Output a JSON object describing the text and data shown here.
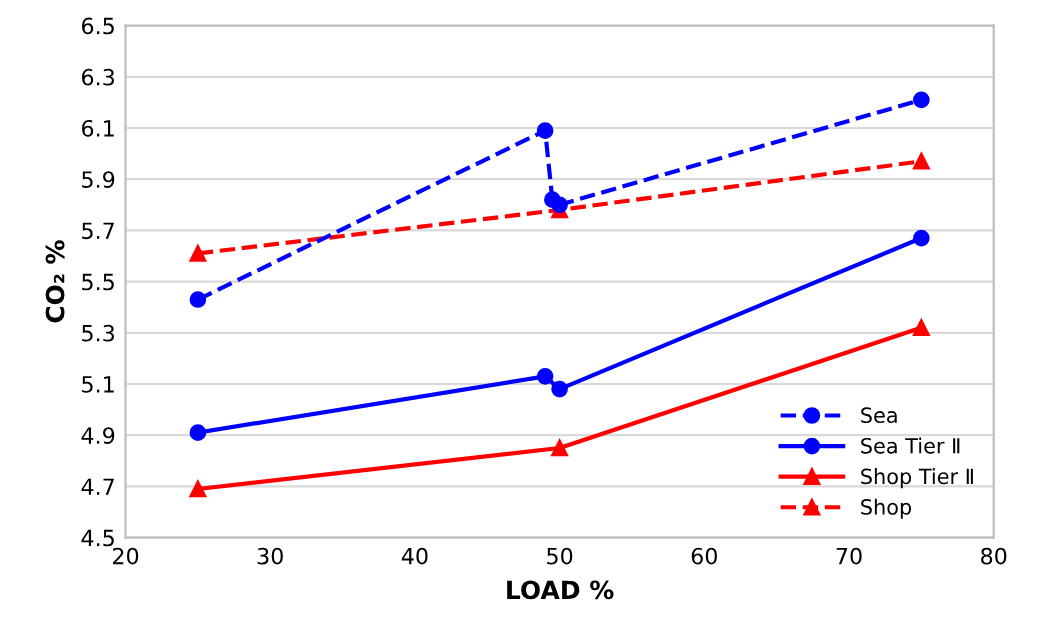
{
  "chart_data": {
    "type": "line",
    "xlabel": "LOAD %",
    "ylabel": "CO₂ %",
    "xlim": [
      20,
      80
    ],
    "xticks": [
      20,
      30,
      40,
      50,
      60,
      70,
      80
    ],
    "ylim": [
      4.5,
      6.5
    ],
    "yticks": [
      4.5,
      4.7,
      4.9,
      5.1,
      5.3,
      5.5,
      5.7,
      5.9,
      6.1,
      6.3,
      6.5
    ],
    "grid": "y",
    "legend": "bottom right",
    "series": [
      {
        "name": "Sea",
        "color": "#0000ff",
        "marker": "circle",
        "line_style": "dashed",
        "x": [
          25,
          49,
          49.5,
          50,
          75
        ],
        "values": [
          5.43,
          6.09,
          5.82,
          5.8,
          6.21
        ]
      },
      {
        "name": "Sea Tier Ⅱ",
        "color": "#0000ff",
        "marker": "circle",
        "line_style": "solid",
        "x": [
          25,
          49,
          50,
          75
        ],
        "values": [
          4.91,
          5.13,
          5.08,
          5.67
        ]
      },
      {
        "name": "Shop Tier Ⅱ",
        "color": "#ff0000",
        "marker": "triangle",
        "line_style": "solid",
        "x": [
          25,
          50,
          75
        ],
        "values": [
          4.69,
          4.85,
          5.32
        ]
      },
      {
        "name": "Shop",
        "color": "#ff0000",
        "marker": "triangle",
        "line_style": "dashed",
        "x": [
          25,
          50,
          75
        ],
        "values": [
          5.61,
          5.78,
          5.97
        ]
      }
    ]
  }
}
